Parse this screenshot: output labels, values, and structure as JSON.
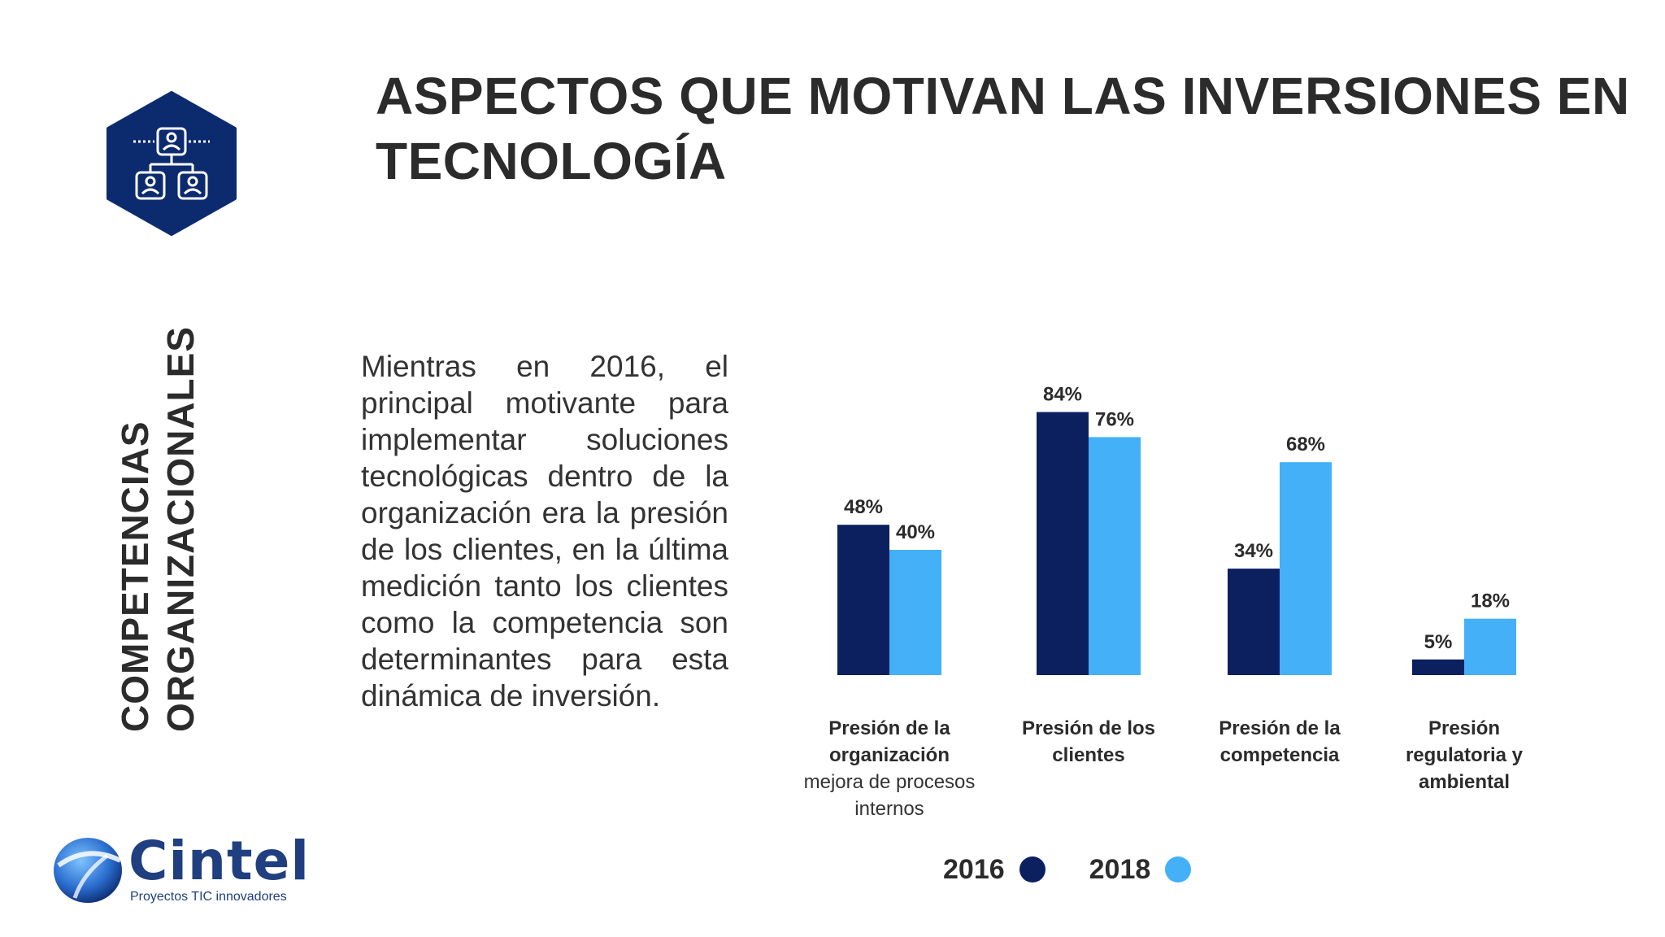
{
  "title": "ASPECTOS QUE MOTIVAN LAS INVERSIONES EN TECNOLOGÍA",
  "section": {
    "line1": "COMPETENCIAS",
    "line2": "ORGANIZACIONALES",
    "icon": "org-chart-icon"
  },
  "body": "Mientras en 2016, el principal motivante para implementar soluciones tecnológicas dentro de la organización era la presión de los clientes, en la última medición tanto los clientes como la competencia son determinantes para esta dinámica de inversión.",
  "logo": {
    "name": "Cintel",
    "tagline": "Proyectos TIC innovadores",
    "icon": "cintel-globe-icon"
  },
  "colors": {
    "s2016": "#0c2060",
    "s2018": "#43b0f8",
    "title": "#2b2b2b",
    "icon_bg": "#0c2a6e"
  },
  "chart_data": {
    "type": "bar",
    "categories": [
      {
        "label": "Presión de la organización",
        "sub": "mejora de procesos internos"
      },
      {
        "label": "Presión de los clientes",
        "sub": ""
      },
      {
        "label": "Presión de la competencia",
        "sub": ""
      },
      {
        "label": "Presión regulatoria y ambiental",
        "sub": ""
      }
    ],
    "series": [
      {
        "name": "2016",
        "values": [
          48,
          84,
          34,
          5
        ],
        "labels": [
          "48%",
          "84%",
          "34%",
          "5%"
        ]
      },
      {
        "name": "2018",
        "values": [
          40,
          76,
          68,
          18
        ],
        "labels": [
          "40%",
          "76%",
          "68%",
          "18%"
        ]
      }
    ],
    "ylim": [
      0,
      100
    ],
    "grid": false,
    "legend": "bottom"
  }
}
